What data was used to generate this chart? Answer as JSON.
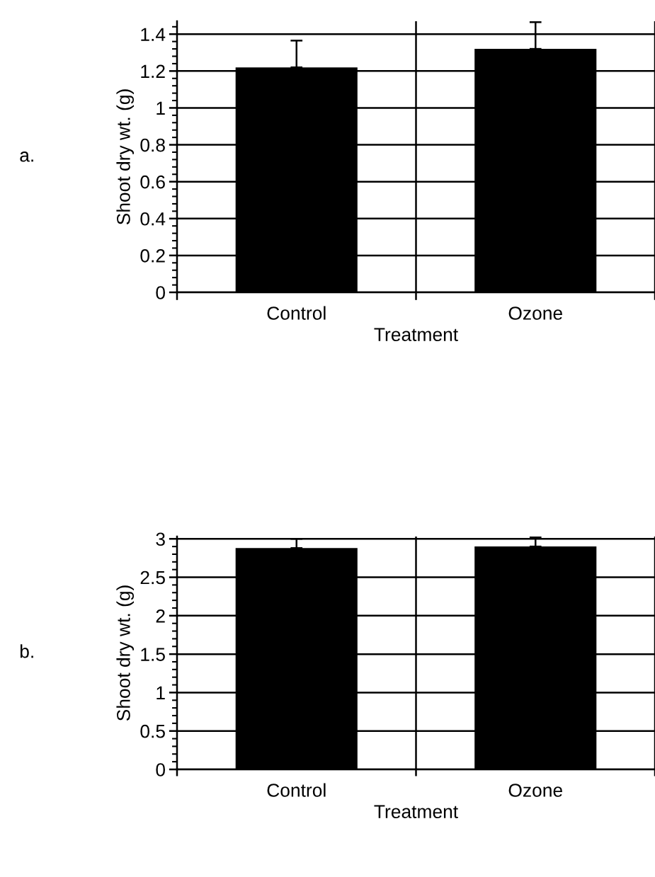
{
  "chart_data": [
    {
      "type": "bar",
      "categories": [
        "Control",
        "Ozone"
      ],
      "xlabel": "Treatment",
      "ylabel": "Shoot dry wt. (g)",
      "annotations": [
        "a."
      ],
      "series": [
        {
          "color": "#000000",
          "values": [
            1.22,
            1.32
          ],
          "errors": [
            0.145,
            0.145
          ]
        }
      ],
      "ylim": [
        0,
        1.47
      ],
      "yticks": [
        0,
        0.2,
        0.4,
        0.6,
        0.8,
        1,
        1.2,
        1.4
      ],
      "grid": true
    },
    {
      "type": "bar",
      "categories": [
        "Control",
        "Ozone"
      ],
      "xlabel": "Treatment",
      "ylabel": "Shoot dry wt. (g)",
      "annotations": [
        "b."
      ],
      "series": [
        {
          "color": "#000000",
          "values": [
            2.88,
            2.9
          ],
          "errors": [
            0.12,
            0.12
          ]
        }
      ],
      "ylim": [
        0,
        3.03
      ],
      "yticks": [
        0,
        0.5,
        1,
        1.5,
        2,
        2.5,
        3
      ],
      "grid": true
    }
  ]
}
